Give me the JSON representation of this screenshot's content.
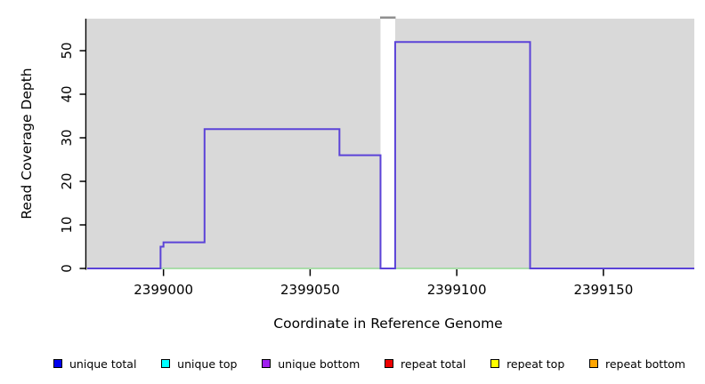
{
  "chart_data": {
    "type": "line",
    "subtype": "step-coverage-plot",
    "title": "",
    "xlabel": "Coordinate in Reference Genome",
    "ylabel": "Read Coverage Depth",
    "x_ticks": [
      2399000,
      2399050,
      2399100,
      2399150
    ],
    "y_ticks": [
      0,
      10,
      20,
      30,
      40,
      50
    ],
    "x_range": [
      2398974,
      2399181
    ],
    "y_range": [
      0,
      57.35
    ],
    "grid": "off",
    "panel_background": "#d9d9d9",
    "mask_region": {
      "from": 2399074,
      "to": 2399079,
      "fill": "#ffffff",
      "cap_color": "#8f8f8f"
    },
    "series": [
      {
        "name": "zero baseline",
        "color": "#94d794",
        "width": 1.6,
        "segments": [
          {
            "from": 2398974,
            "to": 2399181,
            "depth": 0
          }
        ]
      },
      {
        "name": "unique bottom coverage",
        "color": "#5b43d8",
        "width": 2,
        "segments": [
          {
            "from": 2398974,
            "to": 2398999,
            "depth": 0
          },
          {
            "from": 2398999,
            "to": 2399000,
            "depth": 5
          },
          {
            "from": 2399000,
            "to": 2399014,
            "depth": 6
          },
          {
            "from": 2399014,
            "to": 2399060,
            "depth": 32
          },
          {
            "from": 2399060,
            "to": 2399074,
            "depth": 26
          },
          {
            "from": 2399074,
            "to": 2399079,
            "depth": 0
          },
          {
            "from": 2399079,
            "to": 2399125,
            "depth": 52
          },
          {
            "from": 2399125,
            "to": 2399181,
            "depth": 0
          }
        ]
      }
    ],
    "legend_position": "bottom",
    "legend": [
      {
        "label": "unique total",
        "color": "#0000ee"
      },
      {
        "label": "unique top",
        "color": "#00ffff"
      },
      {
        "label": "unique bottom",
        "color": "#a020f0"
      },
      {
        "label": "repeat total",
        "color": "#ee0000"
      },
      {
        "label": "repeat top",
        "color": "#ffff00"
      },
      {
        "label": "repeat bottom",
        "color": "#ffa500"
      }
    ]
  }
}
